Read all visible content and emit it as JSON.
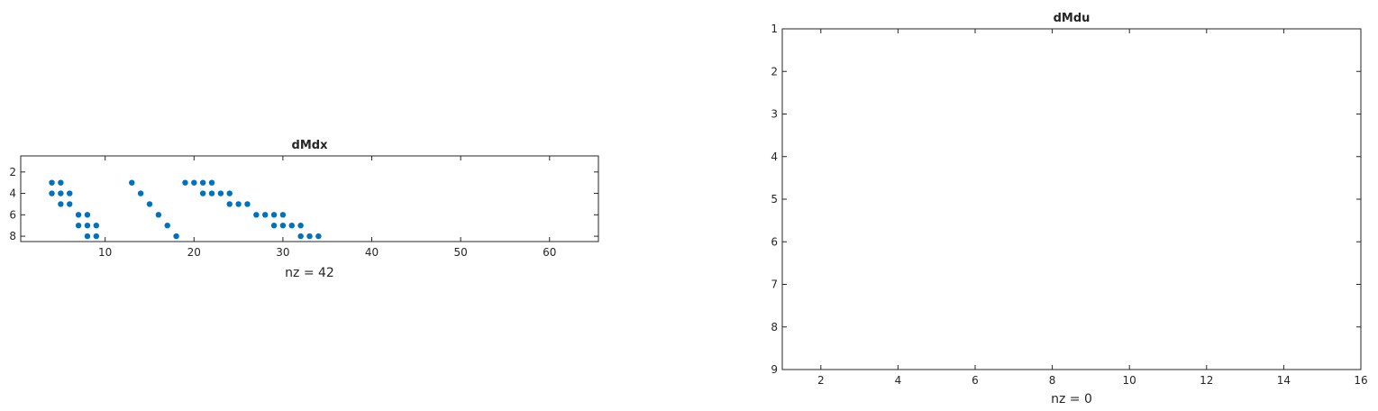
{
  "chart_data": [
    {
      "type": "scatter",
      "title": "dMdx",
      "xlabel": "nz = 42",
      "xlim": [
        0.5,
        65.5
      ],
      "ylim": [
        0.5,
        8.5
      ],
      "y_reversed": true,
      "xticks": [
        10,
        20,
        30,
        40,
        50,
        60
      ],
      "yticks": [
        2,
        4,
        6,
        8
      ],
      "grid": false,
      "marker_color": "#0072BD",
      "points": [
        [
          4,
          3
        ],
        [
          4,
          4
        ],
        [
          5,
          3
        ],
        [
          5,
          4
        ],
        [
          5,
          5
        ],
        [
          6,
          4
        ],
        [
          6,
          5
        ],
        [
          7,
          6
        ],
        [
          7,
          7
        ],
        [
          8,
          6
        ],
        [
          8,
          7
        ],
        [
          8,
          8
        ],
        [
          9,
          7
        ],
        [
          9,
          8
        ],
        [
          13,
          3
        ],
        [
          14,
          4
        ],
        [
          15,
          5
        ],
        [
          16,
          6
        ],
        [
          17,
          7
        ],
        [
          18,
          8
        ],
        [
          19,
          3
        ],
        [
          20,
          3
        ],
        [
          21,
          3
        ],
        [
          21,
          4
        ],
        [
          22,
          3
        ],
        [
          22,
          4
        ],
        [
          23,
          4
        ],
        [
          24,
          4
        ],
        [
          24,
          5
        ],
        [
          25,
          5
        ],
        [
          26,
          5
        ],
        [
          27,
          6
        ],
        [
          28,
          6
        ],
        [
          29,
          6
        ],
        [
          29,
          7
        ],
        [
          30,
          6
        ],
        [
          30,
          7
        ],
        [
          31,
          7
        ],
        [
          32,
          7
        ],
        [
          32,
          8
        ],
        [
          33,
          8
        ],
        [
          34,
          8
        ]
      ]
    },
    {
      "type": "scatter",
      "title": "dMdu",
      "xlabel": "nz = 0",
      "xlim": [
        1,
        16
      ],
      "ylim": [
        1,
        9
      ],
      "y_reversed": true,
      "xticks": [
        2,
        4,
        6,
        8,
        10,
        12,
        14,
        16
      ],
      "yticks": [
        1,
        2,
        3,
        4,
        5,
        6,
        7,
        8,
        9
      ],
      "grid": false,
      "marker_color": "#0072BD",
      "points": []
    }
  ]
}
